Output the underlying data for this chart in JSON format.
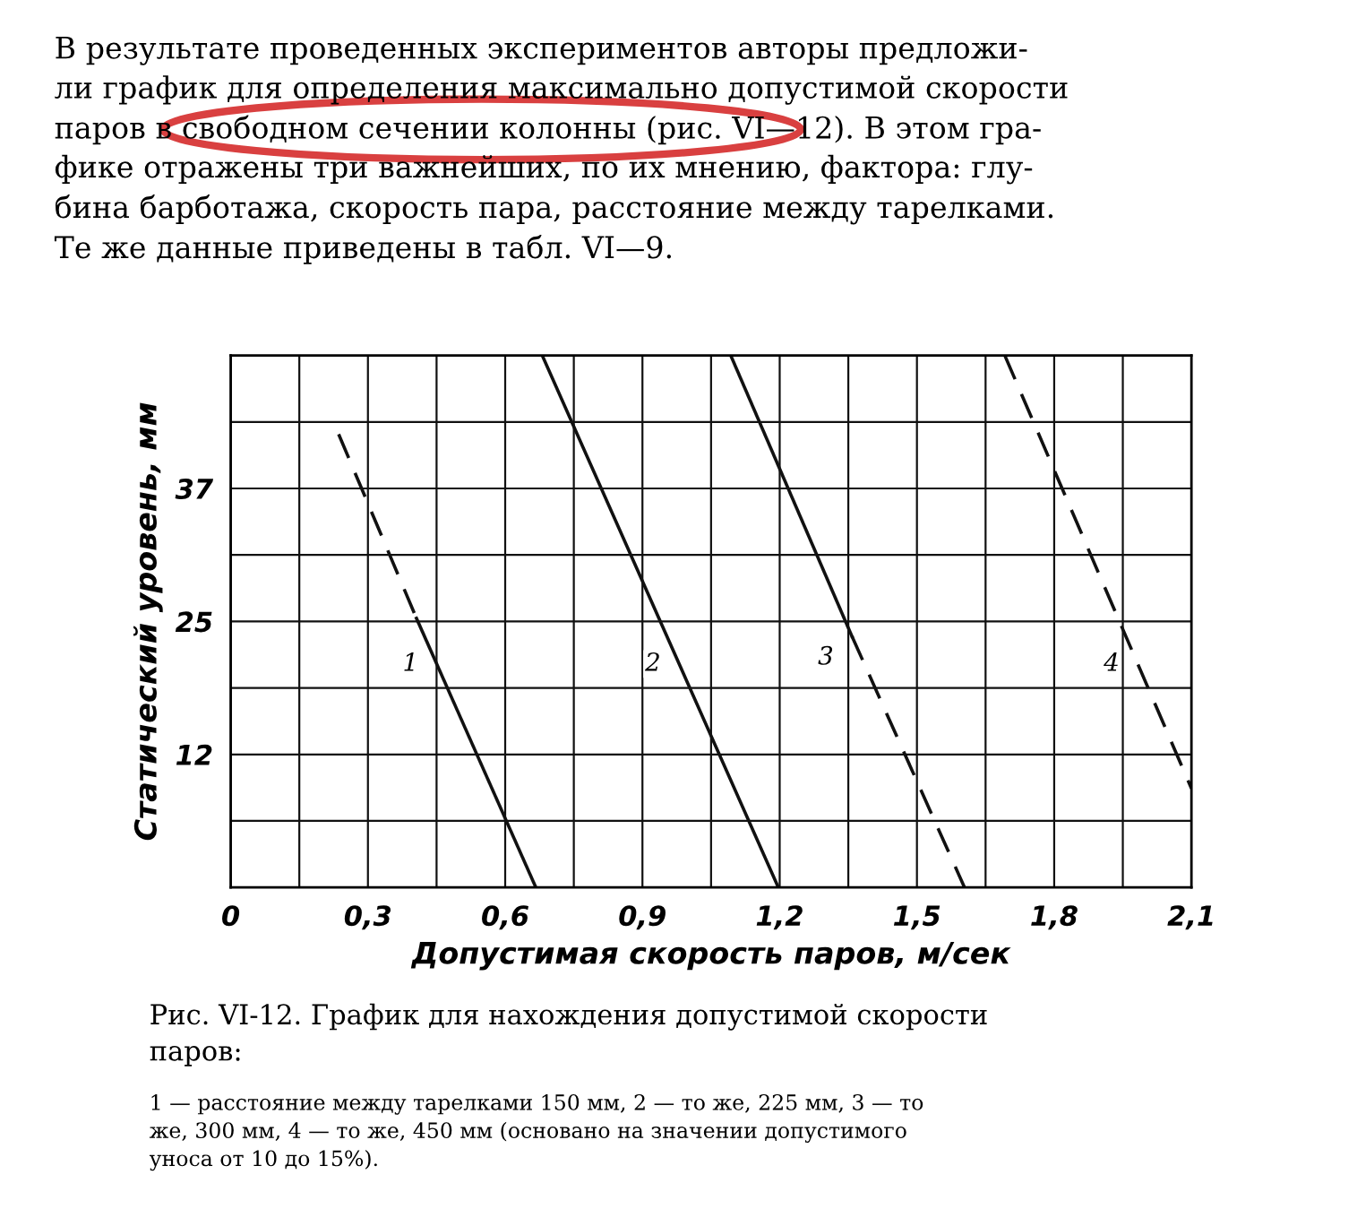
{
  "chart_data": {
    "type": "line",
    "xlabel": "Допустимая скорость паров, м/сек",
    "ylabel": "Статический уровень, мм",
    "xlim": [
      0,
      2.1
    ],
    "ylim": [
      0,
      50
    ],
    "xticks": [
      {
        "value": 0,
        "label": "0"
      },
      {
        "value": 0.15,
        "label": null
      },
      {
        "value": 0.3,
        "label": "0,3"
      },
      {
        "value": 0.45,
        "label": null
      },
      {
        "value": 0.6,
        "label": "0,6"
      },
      {
        "value": 0.75,
        "label": null
      },
      {
        "value": 0.9,
        "label": "0,9"
      },
      {
        "value": 1.05,
        "label": null
      },
      {
        "value": 1.2,
        "label": "1,2"
      },
      {
        "value": 1.35,
        "label": null
      },
      {
        "value": 1.5,
        "label": "1,5"
      },
      {
        "value": 1.65,
        "label": null
      },
      {
        "value": 1.8,
        "label": "1,8"
      },
      {
        "value": 1.95,
        "label": null
      },
      {
        "value": 2.1,
        "label": "2,1"
      }
    ],
    "yticks": [
      {
        "value": 6.25,
        "label": null
      },
      {
        "value": 12.5,
        "label": "12"
      },
      {
        "value": 18.75,
        "label": null
      },
      {
        "value": 25,
        "label": "25"
      },
      {
        "value": 31.25,
        "label": null
      },
      {
        "value": 37.5,
        "label": "37"
      },
      {
        "value": 43.75,
        "label": null
      }
    ],
    "grid": true,
    "legend": false,
    "series": [
      {
        "color": "#111111",
        "line_style": "dashed",
        "x": [
          0.236,
          0.406
        ],
        "values": [
          42.6,
          25.3
        ]
      },
      {
        "name": "1",
        "color": "#111111",
        "line_style": "solid",
        "x": [
          0.406,
          0.667
        ],
        "values": [
          25.3,
          0
        ]
      },
      {
        "name": "2",
        "color": "#111111",
        "line_style": "solid",
        "x": [
          0.681,
          1.197
        ],
        "values": [
          50,
          0
        ]
      },
      {
        "name": "3",
        "color": "#111111",
        "line_style": "solid",
        "x": [
          1.093,
          1.358
        ],
        "values": [
          50,
          23.6
        ]
      },
      {
        "color": "#111111",
        "line_style": "dashed",
        "x": [
          1.358,
          1.604
        ],
        "values": [
          23.6,
          0
        ]
      },
      {
        "name": "4",
        "color": "#111111",
        "line_style": "dashed",
        "x": [
          1.692,
          2.1
        ],
        "values": [
          50,
          9.3
        ]
      }
    ],
    "annotations": [
      "В результате проведенных экспериментов авторы предложи-\nли график для определения максимально допустимой скорости\nпаров в свободном сечении колонны (рис. VI—12). В этом гра-\nфике отражены три важнейших, по их мнению, фактора: глу-\nбина барботажа, скорость пара, расстояние между тарелками.\nТе же данные приведены в табл. VI—9.",
      "Рис. VI-12. График для нахождения допустимой скорости\nпаров:",
      "1 — расстояние между тарелками 150 мм, 2 — то же, 225 мм, 3 — то\nже, 300 мм, 4 — то же, 450 мм (основано на значении допустимого\nуноса от 10 до 15%)."
    ]
  }
}
